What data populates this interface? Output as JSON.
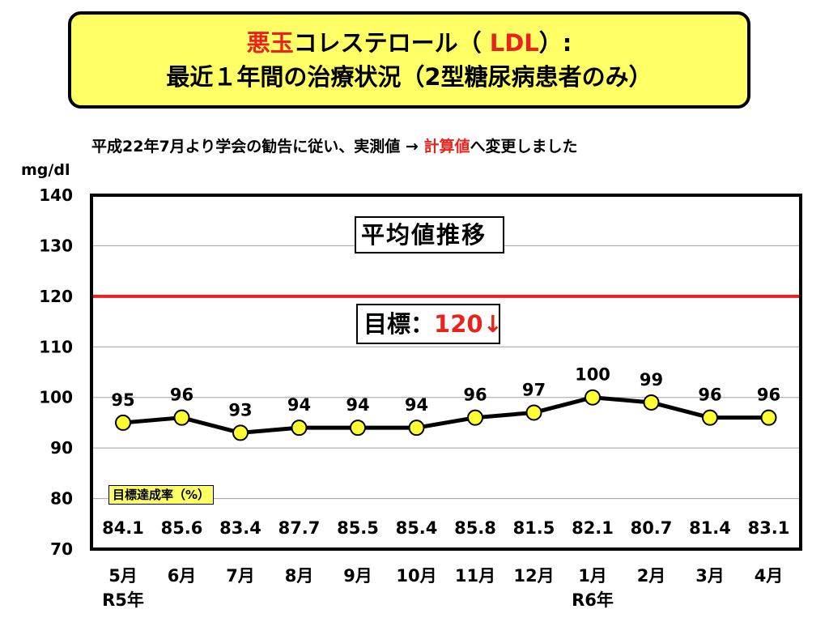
{
  "header": {
    "title_red": "悪玉",
    "title_mid": "コレステロール（ ",
    "title_ldl": "LDL",
    "title_end": "）:",
    "title_line2": "最近１年間の治療状況（2型糖尿病患者のみ）"
  },
  "notice": {
    "prefix": "平成22年7月より学会の勧告に従い、実測値 → ",
    "highlight": "計算値",
    "suffix": "へ変更しました"
  },
  "colors": {
    "title_bg": "#ffff66",
    "accent_red": "#e8231e",
    "marker_fill": "#ffff33",
    "line": "#000000"
  },
  "chart_data": {
    "type": "line",
    "title": "平均値推移",
    "ylabel": "mg/dl",
    "ylim": [
      70,
      140
    ],
    "yticks": [
      140,
      130,
      120,
      110,
      100,
      90,
      80,
      70
    ],
    "grid": true,
    "categories": [
      "5月",
      "6月",
      "7月",
      "8月",
      "9月",
      "10月",
      "11月",
      "12月",
      "1月",
      "2月",
      "3月",
      "4月"
    ],
    "year_labels": [
      {
        "category_index": 0,
        "label": "R5年"
      },
      {
        "category_index": 8,
        "label": "R6年"
      }
    ],
    "series": [
      {
        "values": [
          95,
          96,
          93,
          94,
          94,
          94,
          96,
          97,
          100,
          99,
          96,
          96
        ]
      }
    ],
    "target": {
      "value": 120,
      "label_text": "目標",
      "label_sep": "：",
      "label_value": "120↓"
    },
    "achievement_rate": {
      "label": "目標達成率（%）",
      "values": [
        "84.1",
        "85.6",
        "83.4",
        "87.7",
        "85.5",
        "85.4",
        "85.8",
        "81.5",
        "82.1",
        "80.7",
        "81.4",
        "83.1"
      ]
    }
  }
}
